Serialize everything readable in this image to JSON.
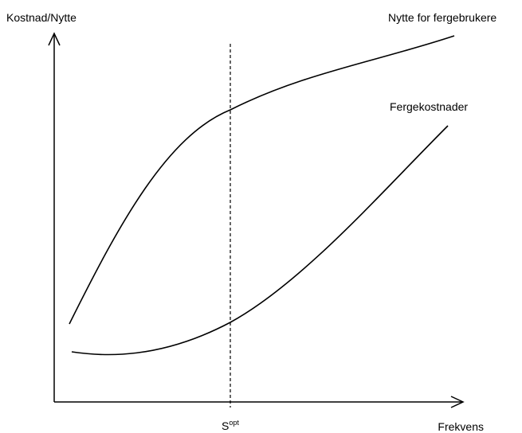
{
  "axes": {
    "y_label": "Kostnad/Nytte",
    "x_label": "Frekvens"
  },
  "curves": [
    {
      "label": "Nytte for fergebrukere"
    },
    {
      "label": "Fergekostnader"
    }
  ],
  "marker": {
    "label": "S",
    "superscript": "opt"
  }
}
